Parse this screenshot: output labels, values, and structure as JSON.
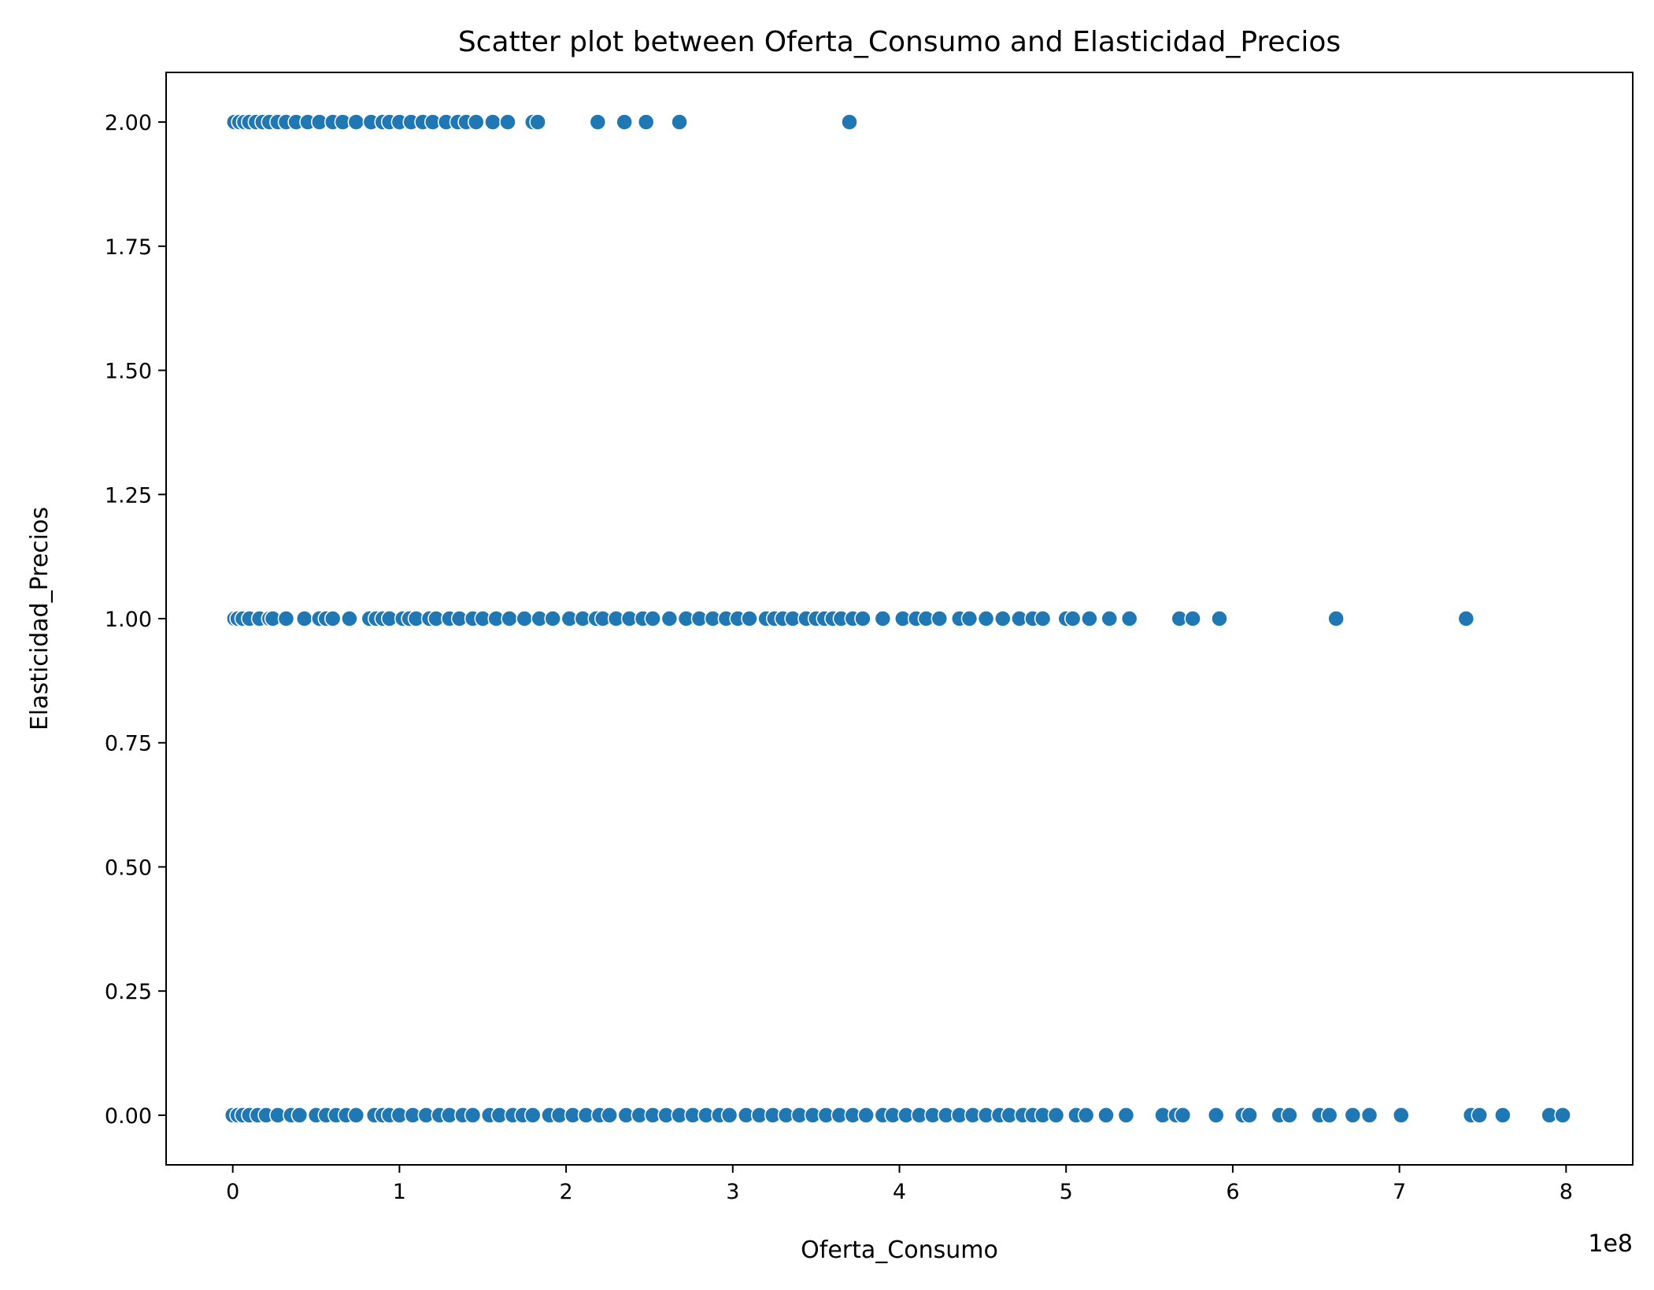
{
  "chart_data": {
    "type": "scatter",
    "title": "Scatter plot between Oferta_Consumo and Elasticidad_Precios",
    "xlabel": "Oferta_Consumo",
    "ylabel": "Elasticidad_Precios",
    "x_offset_label": "1e8",
    "xlim": [
      -0.4,
      8.4
    ],
    "ylim": [
      -0.1,
      2.1
    ],
    "x_ticks": [
      0,
      1,
      2,
      3,
      4,
      5,
      6,
      7,
      8
    ],
    "x_tick_labels": [
      "0",
      "1",
      "2",
      "3",
      "4",
      "5",
      "6",
      "7",
      "8"
    ],
    "y_ticks": [
      0,
      0.25,
      0.5,
      0.75,
      1.0,
      1.25,
      1.5,
      1.75,
      2.0
    ],
    "y_tick_labels": [
      "0.00",
      "0.25",
      "0.50",
      "0.75",
      "1.00",
      "1.25",
      "1.50",
      "1.75",
      "2.00"
    ],
    "grid": false,
    "marker_color": "#1f77b4",
    "marker_edge": "#ffffff",
    "series": [
      {
        "points": [
          [
            0.01,
            2
          ],
          [
            0.04,
            2
          ],
          [
            0.07,
            2
          ],
          [
            0.1,
            2
          ],
          [
            0.14,
            2
          ],
          [
            0.18,
            2
          ],
          [
            0.22,
            2
          ],
          [
            0.27,
            2
          ],
          [
            0.32,
            2
          ],
          [
            0.38,
            2
          ],
          [
            0.45,
            2
          ],
          [
            0.52,
            2
          ],
          [
            0.6,
            2
          ],
          [
            0.66,
            2
          ],
          [
            0.74,
            2
          ],
          [
            0.83,
            2
          ],
          [
            0.9,
            2
          ],
          [
            0.94,
            2
          ],
          [
            1.0,
            2
          ],
          [
            1.07,
            2
          ],
          [
            1.14,
            2
          ],
          [
            1.2,
            2
          ],
          [
            1.28,
            2
          ],
          [
            1.35,
            2
          ],
          [
            1.4,
            2
          ],
          [
            1.46,
            2
          ],
          [
            1.56,
            2
          ],
          [
            1.65,
            2
          ],
          [
            1.8,
            2
          ],
          [
            1.83,
            2
          ],
          [
            2.19,
            2
          ],
          [
            2.35,
            2
          ],
          [
            2.48,
            2
          ],
          [
            2.68,
            2
          ],
          [
            3.7,
            2
          ],
          [
            0.01,
            1
          ],
          [
            0.03,
            1
          ],
          [
            0.06,
            1
          ],
          [
            0.1,
            1
          ],
          [
            0.16,
            1
          ],
          [
            0.22,
            1
          ],
          [
            0.24,
            1
          ],
          [
            0.32,
            1
          ],
          [
            0.43,
            1
          ],
          [
            0.52,
            1
          ],
          [
            0.56,
            1
          ],
          [
            0.6,
            1
          ],
          [
            0.7,
            1
          ],
          [
            0.82,
            1
          ],
          [
            0.86,
            1
          ],
          [
            0.9,
            1
          ],
          [
            0.94,
            1
          ],
          [
            1.02,
            1
          ],
          [
            1.06,
            1
          ],
          [
            1.1,
            1
          ],
          [
            1.18,
            1
          ],
          [
            1.22,
            1
          ],
          [
            1.3,
            1
          ],
          [
            1.36,
            1
          ],
          [
            1.44,
            1
          ],
          [
            1.5,
            1
          ],
          [
            1.58,
            1
          ],
          [
            1.66,
            1
          ],
          [
            1.75,
            1
          ],
          [
            1.84,
            1
          ],
          [
            1.92,
            1
          ],
          [
            2.02,
            1
          ],
          [
            2.1,
            1
          ],
          [
            2.18,
            1
          ],
          [
            2.22,
            1
          ],
          [
            2.3,
            1
          ],
          [
            2.38,
            1
          ],
          [
            2.46,
            1
          ],
          [
            2.52,
            1
          ],
          [
            2.62,
            1
          ],
          [
            2.72,
            1
          ],
          [
            2.8,
            1
          ],
          [
            2.88,
            1
          ],
          [
            2.96,
            1
          ],
          [
            3.03,
            1
          ],
          [
            3.1,
            1
          ],
          [
            3.2,
            1
          ],
          [
            3.25,
            1
          ],
          [
            3.3,
            1
          ],
          [
            3.36,
            1
          ],
          [
            3.44,
            1
          ],
          [
            3.5,
            1
          ],
          [
            3.55,
            1
          ],
          [
            3.6,
            1
          ],
          [
            3.65,
            1
          ],
          [
            3.72,
            1
          ],
          [
            3.78,
            1
          ],
          [
            3.9,
            1
          ],
          [
            4.02,
            1
          ],
          [
            4.1,
            1
          ],
          [
            4.16,
            1
          ],
          [
            4.24,
            1
          ],
          [
            4.36,
            1
          ],
          [
            4.42,
            1
          ],
          [
            4.52,
            1
          ],
          [
            4.62,
            1
          ],
          [
            4.72,
            1
          ],
          [
            4.8,
            1
          ],
          [
            4.86,
            1
          ],
          [
            5.0,
            1
          ],
          [
            5.04,
            1
          ],
          [
            5.14,
            1
          ],
          [
            5.26,
            1
          ],
          [
            5.38,
            1
          ],
          [
            5.68,
            1
          ],
          [
            5.76,
            1
          ],
          [
            5.92,
            1
          ],
          [
            6.62,
            1
          ],
          [
            7.4,
            1
          ],
          [
            0.0,
            0
          ],
          [
            0.03,
            0
          ],
          [
            0.06,
            0
          ],
          [
            0.1,
            0
          ],
          [
            0.15,
            0
          ],
          [
            0.2,
            0
          ],
          [
            0.27,
            0
          ],
          [
            0.35,
            0
          ],
          [
            0.4,
            0
          ],
          [
            0.5,
            0
          ],
          [
            0.56,
            0
          ],
          [
            0.62,
            0
          ],
          [
            0.68,
            0
          ],
          [
            0.74,
            0
          ],
          [
            0.85,
            0
          ],
          [
            0.9,
            0
          ],
          [
            0.94,
            0
          ],
          [
            1.0,
            0
          ],
          [
            1.08,
            0
          ],
          [
            1.16,
            0
          ],
          [
            1.24,
            0
          ],
          [
            1.3,
            0
          ],
          [
            1.38,
            0
          ],
          [
            1.44,
            0
          ],
          [
            1.54,
            0
          ],
          [
            1.6,
            0
          ],
          [
            1.68,
            0
          ],
          [
            1.74,
            0
          ],
          [
            1.8,
            0
          ],
          [
            1.9,
            0
          ],
          [
            1.96,
            0
          ],
          [
            2.04,
            0
          ],
          [
            2.12,
            0
          ],
          [
            2.2,
            0
          ],
          [
            2.26,
            0
          ],
          [
            2.36,
            0
          ],
          [
            2.44,
            0
          ],
          [
            2.52,
            0
          ],
          [
            2.6,
            0
          ],
          [
            2.68,
            0
          ],
          [
            2.76,
            0
          ],
          [
            2.84,
            0
          ],
          [
            2.92,
            0
          ],
          [
            2.98,
            0
          ],
          [
            3.08,
            0
          ],
          [
            3.16,
            0
          ],
          [
            3.24,
            0
          ],
          [
            3.32,
            0
          ],
          [
            3.4,
            0
          ],
          [
            3.48,
            0
          ],
          [
            3.56,
            0
          ],
          [
            3.64,
            0
          ],
          [
            3.72,
            0
          ],
          [
            3.8,
            0
          ],
          [
            3.9,
            0
          ],
          [
            3.96,
            0
          ],
          [
            4.04,
            0
          ],
          [
            4.12,
            0
          ],
          [
            4.2,
            0
          ],
          [
            4.28,
            0
          ],
          [
            4.36,
            0
          ],
          [
            4.44,
            0
          ],
          [
            4.52,
            0
          ],
          [
            4.6,
            0
          ],
          [
            4.66,
            0
          ],
          [
            4.74,
            0
          ],
          [
            4.8,
            0
          ],
          [
            4.86,
            0
          ],
          [
            4.94,
            0
          ],
          [
            5.06,
            0
          ],
          [
            5.12,
            0
          ],
          [
            5.24,
            0
          ],
          [
            5.36,
            0
          ],
          [
            5.58,
            0
          ],
          [
            5.66,
            0
          ],
          [
            5.7,
            0
          ],
          [
            5.9,
            0
          ],
          [
            6.06,
            0
          ],
          [
            6.1,
            0
          ],
          [
            6.28,
            0
          ],
          [
            6.34,
            0
          ],
          [
            6.52,
            0
          ],
          [
            6.58,
            0
          ],
          [
            6.72,
            0
          ],
          [
            6.82,
            0
          ],
          [
            7.01,
            0
          ],
          [
            7.43,
            0
          ],
          [
            7.48,
            0
          ],
          [
            7.62,
            0
          ],
          [
            7.9,
            0
          ],
          [
            7.98,
            0
          ]
        ]
      }
    ]
  }
}
